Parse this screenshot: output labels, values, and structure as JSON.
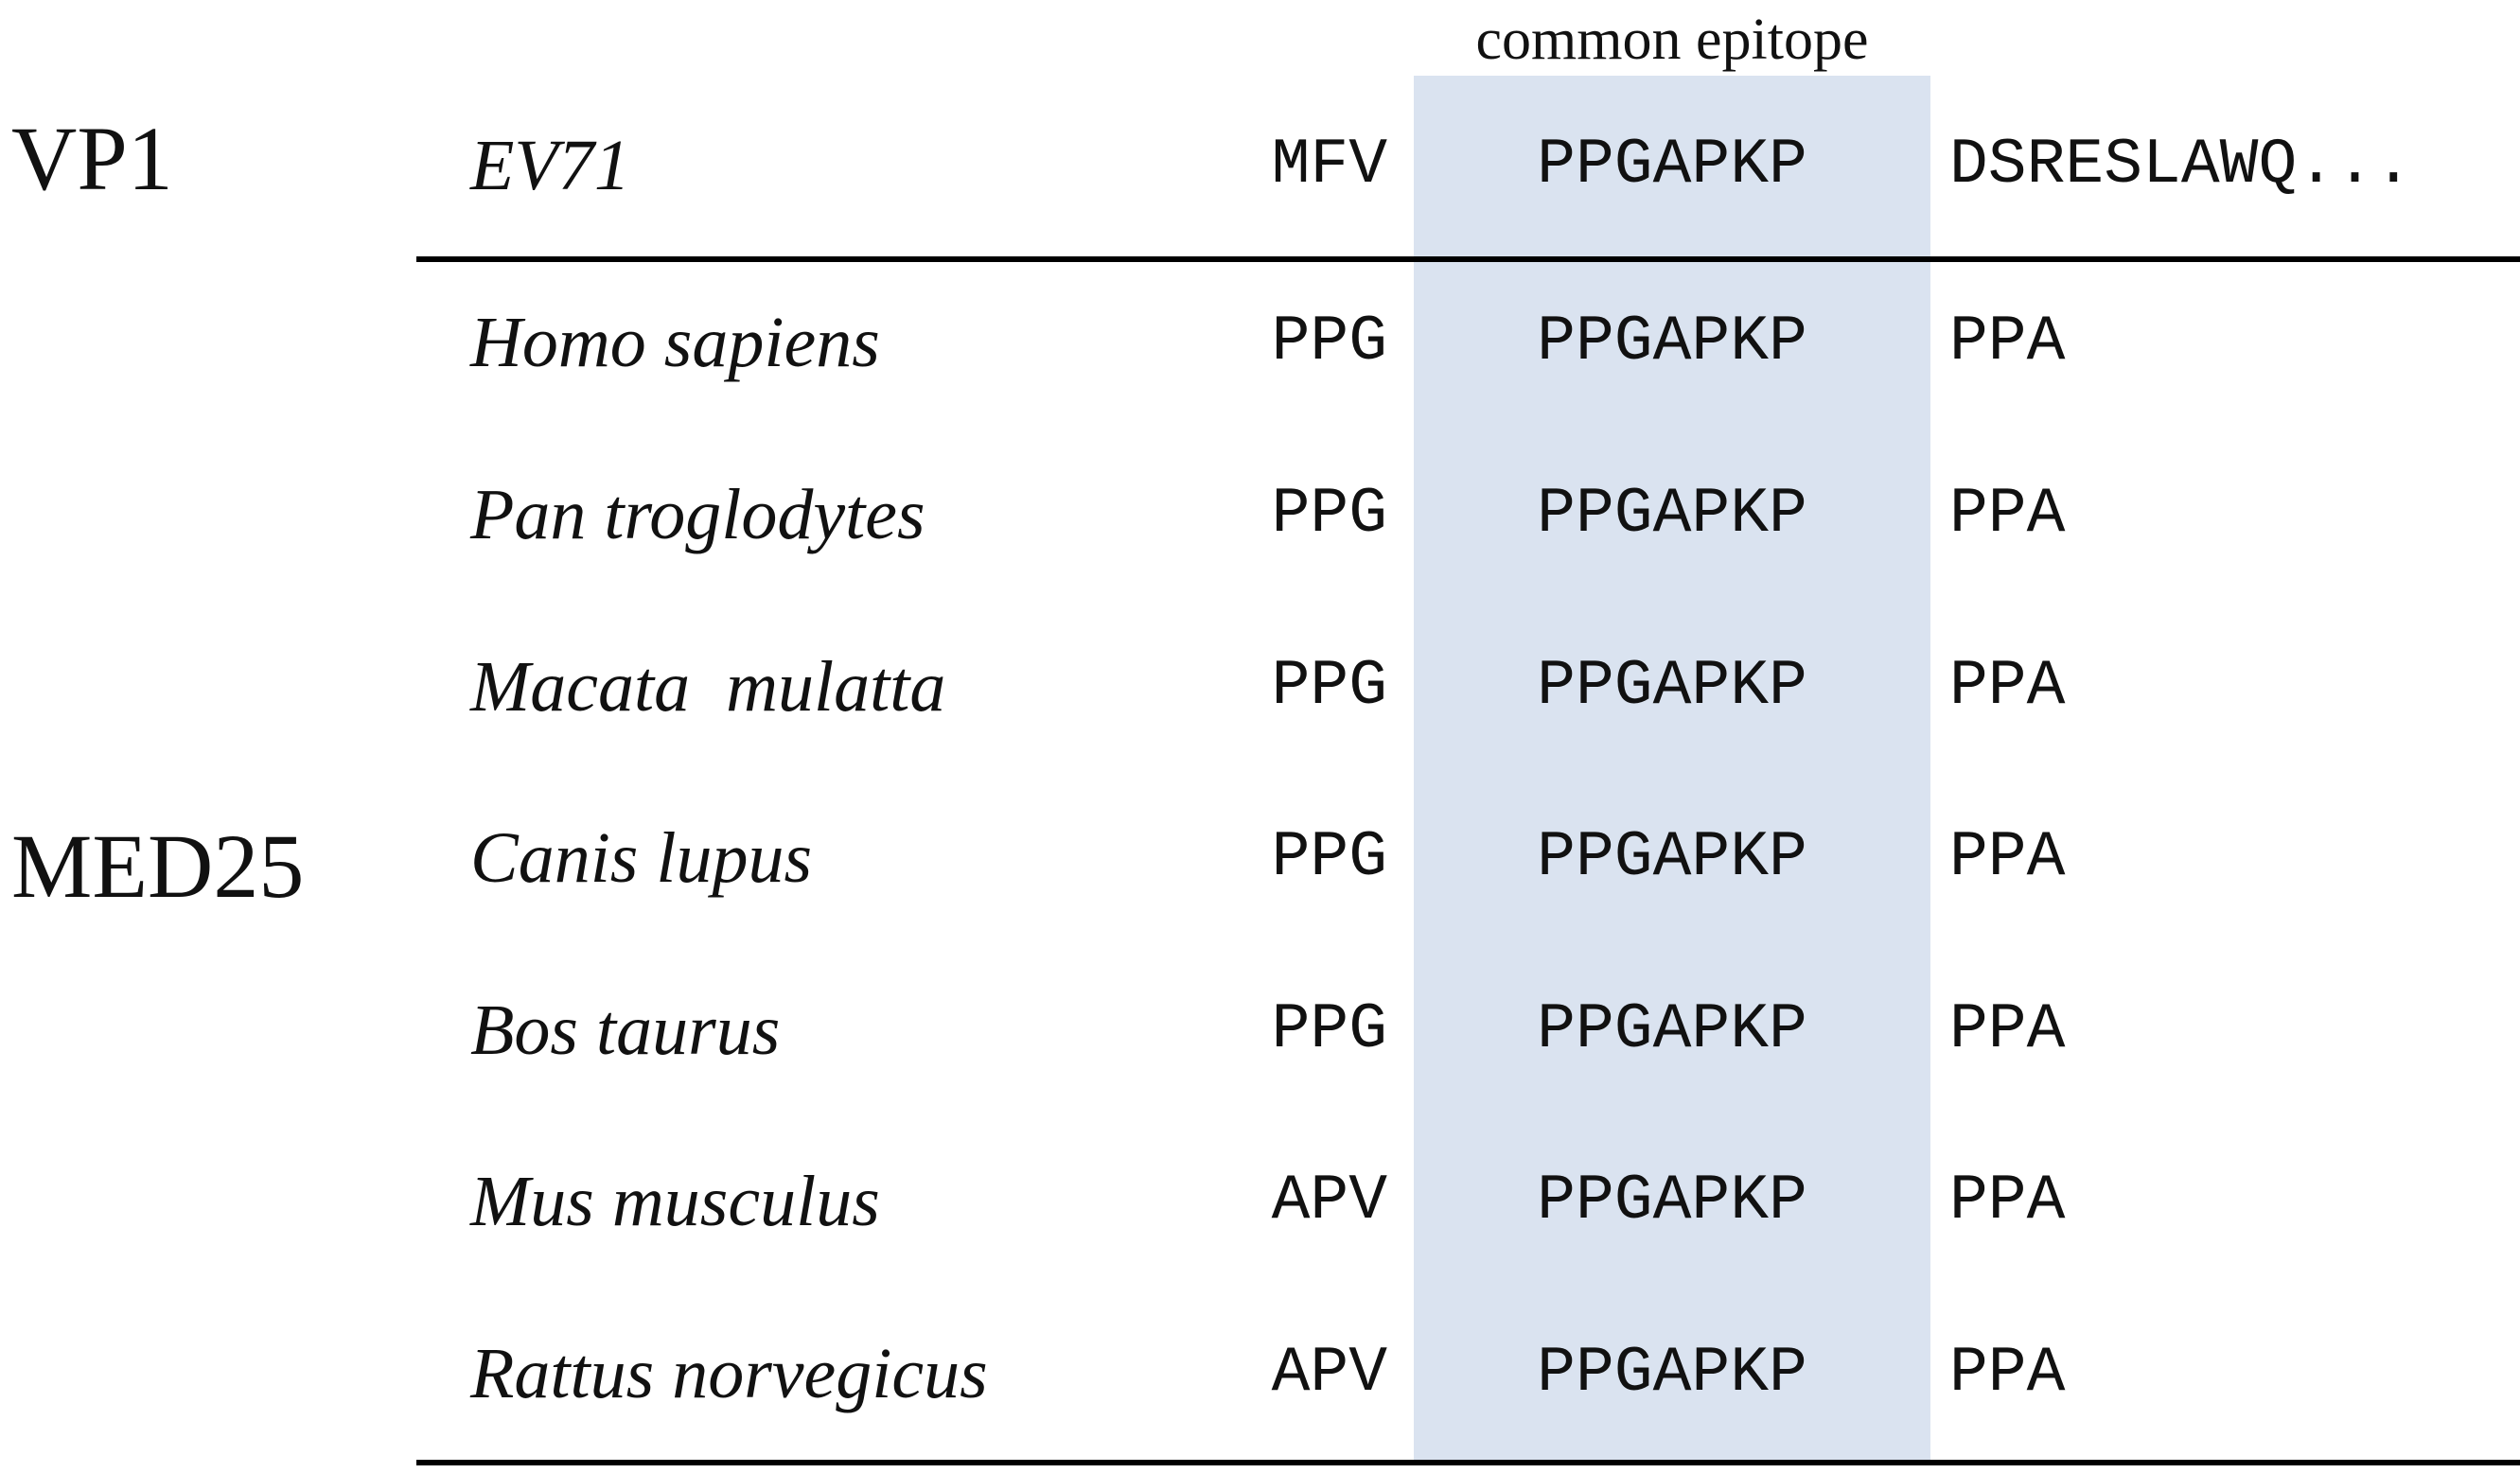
{
  "header": {
    "epitope_label": "common epitope"
  },
  "groups": {
    "vp1": "VP1",
    "med25": "MED25"
  },
  "reference": {
    "species": "EV71",
    "pre": "MFV",
    "epitope": "PPGAPKP",
    "post": "DSRESLAWQ..."
  },
  "rows": [
    {
      "species": "Homo sapiens",
      "pre": "PPG",
      "epitope": "PPGAPKP",
      "post": "PPA"
    },
    {
      "species": "Pan troglodytes",
      "pre": "PPG",
      "epitope": "PPGAPKP",
      "post": "PPA"
    },
    {
      "species": "Macata  mulatta",
      "pre": "PPG",
      "epitope": "PPGAPKP",
      "post": "PPA"
    },
    {
      "species": "Canis lupus",
      "pre": "PPG",
      "epitope": "PPGAPKP",
      "post": "PPA"
    },
    {
      "species": "Bos taurus",
      "pre": "PPG",
      "epitope": "PPGAPKP",
      "post": "PPA"
    },
    {
      "species": "Mus musculus",
      "pre": "APV",
      "epitope": "PPGAPKP",
      "post": "PPA"
    },
    {
      "species": "Rattus norvegicus",
      "pre": "APV",
      "epitope": "PPGAPKP",
      "post": "PPA"
    }
  ],
  "colors": {
    "epitope_highlight": "#dae3f0",
    "text": "#111111",
    "rule": "#000000"
  }
}
